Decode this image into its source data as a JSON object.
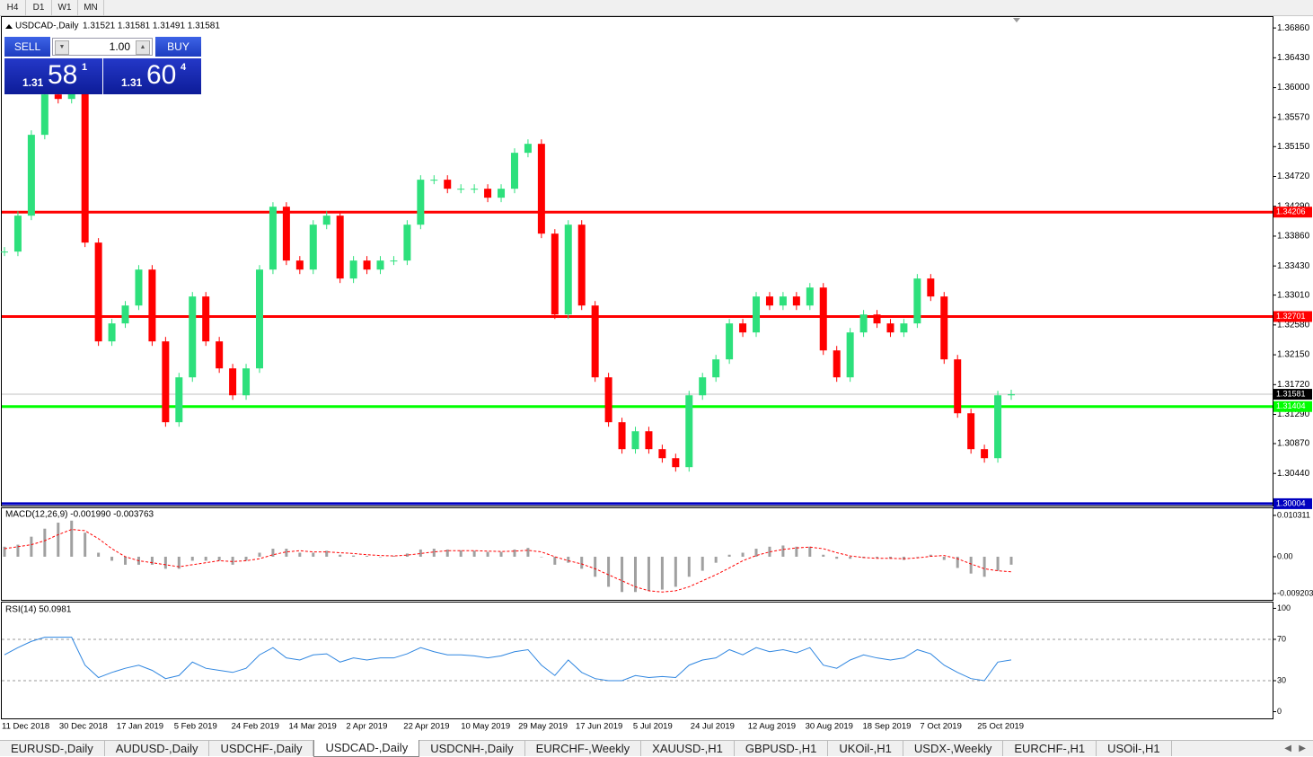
{
  "toolbar": [
    "H4",
    "D1",
    "W1",
    "MN"
  ],
  "chart_data": {
    "type": "candlestick",
    "title": "USDCAD-,Daily",
    "ohlc_label": "1.31521 1.31581 1.31491 1.31581",
    "x_labels": [
      "11 Dec 2018",
      "30 Dec 2018",
      "17 Jan 2019",
      "5 Feb 2019",
      "24 Feb 2019",
      "14 Mar 2019",
      "2 Apr 2019",
      "22 Apr 2019",
      "10 May 2019",
      "29 May 2019",
      "17 Jun 2019",
      "5 Jul 2019",
      "24 Jul 2019",
      "12 Aug 2019",
      "30 Aug 2019",
      "18 Sep 2019",
      "7 Oct 2019",
      "25 Oct 2019"
    ],
    "closes": [
      1.33637,
      1.34155,
      1.3532,
      1.35902,
      1.35837,
      1.35967,
      1.33767,
      1.32343,
      1.32602,
      1.3286,
      1.33378,
      1.32343,
      1.31178,
      1.31825,
      1.3299,
      1.32343,
      1.31954,
      1.31566,
      1.31954,
      1.33378,
      1.34284,
      1.33508,
      1.33378,
      1.34025,
      1.34155,
      1.33249,
      1.33508,
      1.33378,
      1.33508,
      1.33508,
      1.34025,
      1.34673,
      1.34673,
      1.34543,
      1.34543,
      1.34543,
      1.34414,
      1.34543,
      1.35061,
      1.3519,
      1.33896,
      1.32731,
      1.34025,
      1.3286,
      1.31825,
      1.31178,
      1.3079,
      1.31048,
      1.3079,
      1.3066,
      1.30531,
      1.31566,
      1.31825,
      1.32084,
      1.32602,
      1.32472,
      1.3299,
      1.3286,
      1.3299,
      1.3286,
      1.33119,
      1.32213,
      1.31825,
      1.32472,
      1.32731,
      1.32602,
      1.32472,
      1.32602,
      1.33249,
      1.3299,
      1.32084,
      1.31307,
      1.3079,
      1.3066,
      1.31566,
      1.31581
    ],
    "up_color": "#2de07c",
    "down_color": "#ff0000",
    "ylim": [
      1.2999,
      1.3703
    ],
    "yticks": [
      {
        "value": 1.3686,
        "label": "1.36860"
      },
      {
        "value": 1.3643,
        "label": "1.36430"
      },
      {
        "value": 1.36,
        "label": "1.36000"
      },
      {
        "value": 1.3557,
        "label": "1.35570"
      },
      {
        "value": 1.3515,
        "label": "1.35150"
      },
      {
        "value": 1.3472,
        "label": "1.34720"
      },
      {
        "value": 1.3429,
        "label": "1.34290"
      },
      {
        "value": 1.3386,
        "label": "1.33860"
      },
      {
        "value": 1.3343,
        "label": "1.33430"
      },
      {
        "value": 1.3301,
        "label": "1.33010"
      },
      {
        "value": 1.3258,
        "label": "1.32580"
      },
      {
        "value": 1.3215,
        "label": "1.32150"
      },
      {
        "value": 1.3172,
        "label": "1.31720"
      },
      {
        "value": 1.3129,
        "label": "1.31290"
      },
      {
        "value": 1.3087,
        "label": "1.30870"
      },
      {
        "value": 1.3044,
        "label": "1.30440"
      }
    ],
    "levels": [
      {
        "value": 1.34206,
        "color": "#ff0000"
      },
      {
        "value": 1.32701,
        "color": "#ff0000"
      },
      {
        "value": 1.31404,
        "color": "#00ff00"
      },
      {
        "value": 1.30004,
        "color": "#0000c0"
      }
    ],
    "bid": 1.31581,
    "macd": {
      "label": "MACD(12,26,9) -0.001990 -0.003763",
      "histogram": [
        0.0025,
        0.003,
        0.005,
        0.007,
        0.0085,
        0.009,
        0.006,
        0.001,
        -0.001,
        -0.002,
        -0.002,
        -0.002,
        -0.003,
        -0.003,
        -0.001,
        -0.001,
        -0.001,
        -0.002,
        -0.001,
        0.001,
        0.002,
        0.002,
        0.001,
        0.001,
        0.0015,
        0.0005,
        0.0003,
        0.0002,
        0,
        0.0002,
        0.0008,
        0.0018,
        0.002,
        0.0018,
        0.0016,
        0.0015,
        0.0012,
        0.0012,
        0.0018,
        0.0022,
        0,
        -0.002,
        -0.0015,
        -0.003,
        -0.005,
        -0.0075,
        -0.0088,
        -0.0088,
        -0.0085,
        -0.0082,
        -0.0075,
        -0.005,
        -0.0035,
        -0.0015,
        0.0005,
        0.001,
        0.002,
        0.0025,
        0.0028,
        0.0025,
        0.0025,
        0.0005,
        -0.0005,
        -0.0005,
        -0.0003,
        -0.0003,
        -0.0005,
        -0.0008,
        0,
        0.0005,
        -0.0008,
        -0.0028,
        -0.0042,
        -0.005,
        -0.0035,
        -0.00199
      ],
      "signal": [
        0.002,
        0.0025,
        0.003,
        0.004,
        0.0055,
        0.0068,
        0.0065,
        0.0045,
        0.002,
        0,
        -0.001,
        -0.0015,
        -0.002,
        -0.0025,
        -0.002,
        -0.0015,
        -0.001,
        -0.0012,
        -0.001,
        -0.0005,
        0.0005,
        0.0012,
        0.0015,
        0.0012,
        0.0012,
        0.001,
        0.0008,
        0.0005,
        0.0003,
        0.0002,
        0.0004,
        0.0008,
        0.0012,
        0.0015,
        0.0015,
        0.0015,
        0.0014,
        0.0013,
        0.0014,
        0.0016,
        0.0012,
        0,
        -0.001,
        -0.0018,
        -0.003,
        -0.0045,
        -0.006,
        -0.0075,
        -0.0085,
        -0.0088,
        -0.0085,
        -0.0075,
        -0.006,
        -0.0045,
        -0.0028,
        -0.001,
        0.0003,
        0.0012,
        0.0018,
        0.0022,
        0.0024,
        0.002,
        0.001,
        0.0002,
        -0.0002,
        -0.0004,
        -0.0004,
        -0.0005,
        -0.0003,
        0.0001,
        0.0003,
        -0.0005,
        -0.0018,
        -0.003,
        -0.0035,
        -0.003763
      ],
      "histogram_color": "#a0a0a0",
      "signal_color": "#ff0000",
      "ylim": [
        -0.01076,
        0.01209
      ],
      "yticks": [
        0.010311,
        {
          "value": 0,
          "label": "0.00"
        },
        -0.009203
      ]
    },
    "rsi": {
      "label": "RSI(14) 50.0981",
      "values": [
        55,
        62,
        68,
        72,
        72,
        72,
        45,
        33,
        38,
        42,
        45,
        40,
        32,
        35,
        48,
        42,
        40,
        38,
        42,
        55,
        62,
        52,
        50,
        55,
        56,
        48,
        52,
        50,
        52,
        52,
        56,
        62,
        58,
        55,
        55,
        54,
        52,
        54,
        58,
        60,
        45,
        35,
        50,
        38,
        32,
        30,
        30,
        35,
        33,
        34,
        33,
        45,
        50,
        52,
        60,
        55,
        62,
        58,
        60,
        57,
        62,
        45,
        42,
        50,
        55,
        52,
        50,
        52,
        60,
        56,
        45,
        38,
        32,
        30,
        48,
        50.0981
      ],
      "color": "#2f86e0",
      "ylim": [
        -6.5,
        105.6
      ],
      "yticks": [
        100,
        70,
        30,
        0
      ],
      "dashed_levels": [
        70,
        30
      ]
    }
  },
  "trade_panel": {
    "sell": "SELL",
    "buy": "BUY",
    "lots": "1.00",
    "sell_price": {
      "big": "1.31",
      "main": "58",
      "sup": "1"
    },
    "buy_price": {
      "big": "1.31",
      "main": "60",
      "sup": "4"
    }
  },
  "tabs": [
    "EURUSD-,Daily",
    "AUDUSD-,Daily",
    "USDCHF-,Daily",
    "USDCAD-,Daily",
    "USDCNH-,Daily",
    "EURCHF-,Weekly",
    "XAUUSD-,H1",
    "GBPUSD-,H1",
    "UKOil-,H1",
    "USDX-,Weekly",
    "EURCHF-,H1",
    "USOil-,H1"
  ],
  "active_tab": 3
}
